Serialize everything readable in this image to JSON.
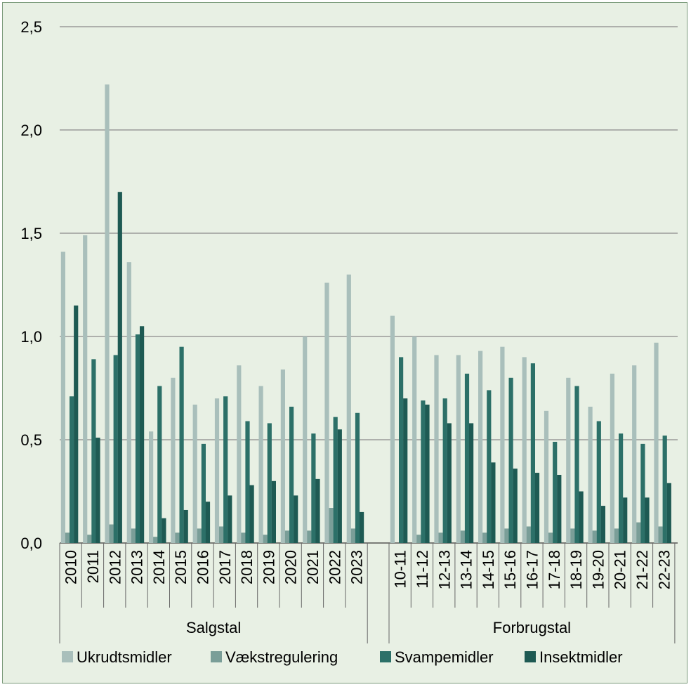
{
  "chart_data": {
    "type": "bar",
    "ylim": [
      0,
      2.5
    ],
    "yticks": [
      "0,0",
      "0,5",
      "1,0",
      "1,5",
      "2,0",
      "2,5"
    ],
    "ytick_values": [
      0,
      0.5,
      1.0,
      1.5,
      2.0,
      2.5
    ],
    "grid": true,
    "legend_placement": "bottom",
    "groups": [
      {
        "label": "Salgstal",
        "categories": [
          "2010",
          "2011",
          "2012",
          "2013",
          "2014",
          "2015",
          "2016",
          "2017",
          "2018",
          "2019",
          "2020",
          "2021",
          "2022",
          "2023"
        ]
      },
      {
        "label": "Forbrugstal",
        "categories": [
          "10-11",
          "11-12",
          "12-13",
          "13-14",
          "14-15",
          "15-16",
          "16-17",
          "17-18",
          "18-19",
          "19-20",
          "20-21",
          "21-22",
          "22-23"
        ]
      }
    ],
    "series": [
      {
        "name": "Ukrudtsmidler",
        "color": "#a9bfbb",
        "values": [
          1.41,
          1.49,
          2.22,
          1.36,
          0.54,
          0.8,
          0.67,
          0.7,
          0.86,
          0.76,
          0.84,
          1.0,
          1.26,
          1.3,
          1.1,
          1.0,
          0.91,
          0.91,
          0.93,
          0.95,
          0.9,
          0.64,
          0.8,
          0.66,
          0.82,
          0.86,
          0.97
        ]
      },
      {
        "name": "Vækstregulering",
        "color": "#7a9e98",
        "values": [
          0.05,
          0.04,
          0.09,
          0.07,
          0.03,
          0.05,
          0.07,
          0.08,
          0.05,
          0.04,
          0.06,
          0.06,
          0.17,
          0.07,
          0.0,
          0.04,
          0.05,
          0.06,
          0.05,
          0.07,
          0.08,
          0.05,
          0.07,
          0.06,
          0.07,
          0.1,
          0.08
        ]
      },
      {
        "name": "Svampemidler",
        "color": "#2c7068",
        "values": [
          0.71,
          0.89,
          0.91,
          1.01,
          0.76,
          0.95,
          0.48,
          0.71,
          0.59,
          0.58,
          0.66,
          0.53,
          0.61,
          0.63,
          0.9,
          0.69,
          0.7,
          0.82,
          0.74,
          0.8,
          0.87,
          0.49,
          0.76,
          0.59,
          0.53,
          0.48,
          0.52
        ]
      },
      {
        "name": "Insektmidler",
        "color": "#1e5a53",
        "values": [
          1.15,
          0.51,
          1.7,
          1.05,
          0.12,
          0.16,
          0.2,
          0.23,
          0.28,
          0.3,
          0.23,
          0.31,
          0.55,
          0.15,
          0.7,
          0.67,
          0.58,
          0.58,
          0.39,
          0.36,
          0.34,
          0.33,
          0.25,
          0.18,
          0.22,
          0.22,
          0.29
        ]
      }
    ]
  }
}
